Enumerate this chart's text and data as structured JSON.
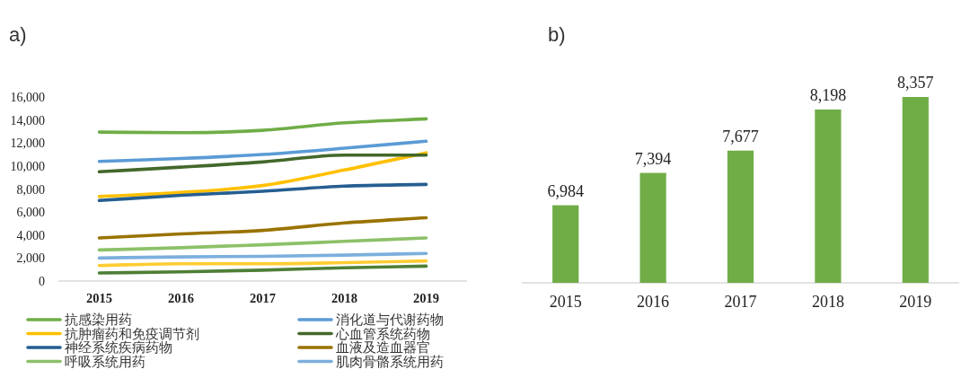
{
  "chart_data": [
    {
      "type": "line",
      "title": "a)",
      "categories": [
        "2015",
        "2016",
        "2017",
        "2018",
        "2019"
      ],
      "series": [
        {
          "name": "抗感染用药",
          "color": "#70ad47",
          "values": [
            12950,
            12900,
            13100,
            13750,
            14100
          ]
        },
        {
          "name": "消化道与代谢药物",
          "color": "#5b9bd5",
          "values": [
            10400,
            10650,
            11000,
            11550,
            12150
          ]
        },
        {
          "name": "抗肿瘤药和免疫调节剂",
          "color": "#ffc000",
          "values": [
            7350,
            7700,
            8300,
            9650,
            11150
          ]
        },
        {
          "name": "心血管系统药物",
          "color": "#43682b",
          "values": [
            9500,
            9900,
            10350,
            10950,
            10950
          ]
        },
        {
          "name": "神经系统疾病药物",
          "color": "#255e91",
          "values": [
            7000,
            7450,
            7800,
            8250,
            8400
          ]
        },
        {
          "name": "血液及造血器官",
          "color": "#997300",
          "values": [
            3750,
            4100,
            4400,
            5050,
            5500
          ]
        },
        {
          "name": "呼吸系统用药",
          "color": "#8cc168",
          "values": [
            2700,
            2900,
            3150,
            3450,
            3750
          ]
        },
        {
          "name": "肌肉骨骼系统用药",
          "color": "#7cafdd",
          "values": [
            2000,
            2100,
            2150,
            2250,
            2400
          ]
        },
        {
          "color": "#ffcd33",
          "values": [
            1350,
            1500,
            1500,
            1600,
            1750
          ]
        },
        {
          "color": "#4e7f35",
          "values": [
            700,
            800,
            950,
            1150,
            1300
          ]
        }
      ],
      "ylim": [
        0,
        16000
      ],
      "yticks": [
        0,
        {
          "value": 2000,
          "label": "2,000"
        },
        {
          "value": 4000,
          "label": "4,000"
        },
        {
          "value": 6000,
          "label": "6,000"
        },
        {
          "value": 8000,
          "label": "8,000"
        },
        {
          "value": 10000,
          "label": "10,000"
        },
        {
          "value": 12000,
          "label": "12,000"
        },
        {
          "value": 14000,
          "label": "14,000"
        },
        {
          "value": 16000,
          "label": "16,000"
        }
      ],
      "legend": "bottom"
    },
    {
      "type": "bar",
      "title": "b)",
      "categories": [
        "2015",
        "2016",
        "2017",
        "2018",
        "2019"
      ],
      "values": [
        6984,
        7394,
        7677,
        8198,
        8357
      ],
      "color": "#70ad47",
      "value_labels": [
        "6,984",
        "7,394",
        "7,677",
        "8,198",
        "8,357"
      ],
      "ylim": [
        6000,
        8357
      ],
      "tick_labels": "x"
    }
  ]
}
